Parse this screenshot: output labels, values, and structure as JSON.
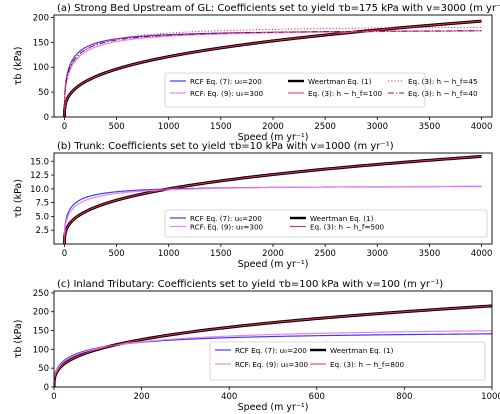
{
  "chart_data": [
    {
      "type": "line",
      "title": "(a) Strong Bed Upstream of GL: Coefficients set to yield τb=175 kPa with v=3000 (m yr⁻¹)",
      "xlabel": "Speed (m yr⁻¹)",
      "ylabel": "τb (kPa)",
      "xlim": [
        -100,
        4100
      ],
      "ylim": [
        0,
        205
      ],
      "xticks": [
        0,
        500,
        1000,
        1500,
        2000,
        2500,
        3000,
        3500,
        4000
      ],
      "yticks": [
        0,
        50,
        100,
        150,
        200
      ],
      "legend_position": "lower-right",
      "legend_columns": 3,
      "series": [
        {
          "name": "RCF Eq. (7): u₀=200",
          "color": "#3b3bff",
          "style": "solid",
          "width": 1.2,
          "model": "regularized",
          "tau_max": 175.8,
          "u0": 200
        },
        {
          "name": "RCFᵢ Eq. (9): u₀=300",
          "color": "#ee82ee",
          "style": "solid",
          "width": 1.2,
          "model": "regularized",
          "tau_max": 177.3,
          "u0": 300
        },
        {
          "name": "Weertman Eq. (1)",
          "color": "#000000",
          "style": "solid",
          "width": 3.0,
          "model": "power",
          "tau_at_ref": 175,
          "v_ref": 3000,
          "exponent": 0.3333
        },
        {
          "name": "Eq. (3): h − h_f=100",
          "color": "#e8274b",
          "style": "solid",
          "width": 1.0,
          "model": "power",
          "tau_at_ref": 175,
          "v_ref": 3000,
          "exponent": 0.3333
        },
        {
          "name": "Eq. (3): h − h_f=45",
          "color": "#e8274b",
          "style": "dotted",
          "width": 1.0,
          "model": "regularized",
          "tau_max": 185,
          "u0": 320
        },
        {
          "name": "Eq. (3): h − h_f=40",
          "color": "#a01010",
          "style": "dashdot",
          "width": 1.0,
          "model": "regularized",
          "tau_max": 177,
          "u0": 250
        }
      ]
    },
    {
      "type": "line",
      "title": "(b) Trunk: Coefficients set to yield τb=10 kPa with v=1000 (m yr⁻¹)",
      "xlabel": "Speed (m yr⁻¹)",
      "ylabel": "τb (kPa)",
      "xlim": [
        -100,
        4100
      ],
      "ylim": [
        0,
        16.5
      ],
      "xticks": [
        0,
        500,
        1000,
        1500,
        2000,
        2500,
        3000,
        3500,
        4000
      ],
      "yticks": [
        2.5,
        5.0,
        7.5,
        10.0,
        12.5,
        15.0
      ],
      "legend_position": "lower-right",
      "legend_columns": 3,
      "series": [
        {
          "name": "RCF Eq. (7): u₀=200",
          "color": "#3b3bff",
          "style": "solid",
          "width": 1.2,
          "model": "regularized",
          "tau_max": 10.6,
          "u0": 200
        },
        {
          "name": "RCFᵢ Eq. (9): u₀=300",
          "color": "#ee82ee",
          "style": "solid",
          "width": 1.2,
          "model": "regularized",
          "tau_max": 10.73,
          "u0": 300
        },
        {
          "name": "Weertman Eq. (1)",
          "color": "#000000",
          "style": "solid",
          "width": 3.0,
          "model": "power",
          "tau_at_ref": 10,
          "v_ref": 1000,
          "exponent": 0.3333
        },
        {
          "name": "Eq. (3): h − h_f=500",
          "color": "#e8274b",
          "style": "solid",
          "width": 1.0,
          "model": "power",
          "tau_at_ref": 10,
          "v_ref": 1000,
          "exponent": 0.3333
        }
      ]
    },
    {
      "type": "line",
      "title": "(c) Inland Tributary: Coefficients set to yield τb=100 kPa with v=100 (m yr⁻¹)",
      "xlabel": "Speed (m yr⁻¹)",
      "ylabel": "τb (kPa)",
      "xlim": [
        0,
        1000
      ],
      "ylim": [
        0,
        255
      ],
      "xticks": [
        0,
        200,
        400,
        600,
        800,
        1000
      ],
      "yticks": [
        0,
        50,
        100,
        150,
        200,
        250
      ],
      "legend_position": "lower-right",
      "legend_columns": 3,
      "series": [
        {
          "name": "RCF Eq. (7): u₀=200",
          "color": "#3b3bff",
          "style": "solid",
          "width": 1.2,
          "model": "regularized",
          "tau_max": 150,
          "u0": 200
        },
        {
          "name": "RCFᵢ Eq. (9): u₀=300",
          "color": "#ee82ee",
          "style": "solid",
          "width": 1.2,
          "model": "regularized",
          "tau_max": 163,
          "u0": 300
        },
        {
          "name": "Weertman Eq. (1)",
          "color": "#000000",
          "style": "solid",
          "width": 3.0,
          "model": "power",
          "tau_at_ref": 100,
          "v_ref": 100,
          "exponent": 0.3333
        },
        {
          "name": "Eq. (3): h − h_f=800",
          "color": "#e8274b",
          "style": "solid",
          "width": 1.0,
          "model": "power",
          "tau_at_ref": 100,
          "v_ref": 100,
          "exponent": 0.3333
        }
      ]
    }
  ]
}
